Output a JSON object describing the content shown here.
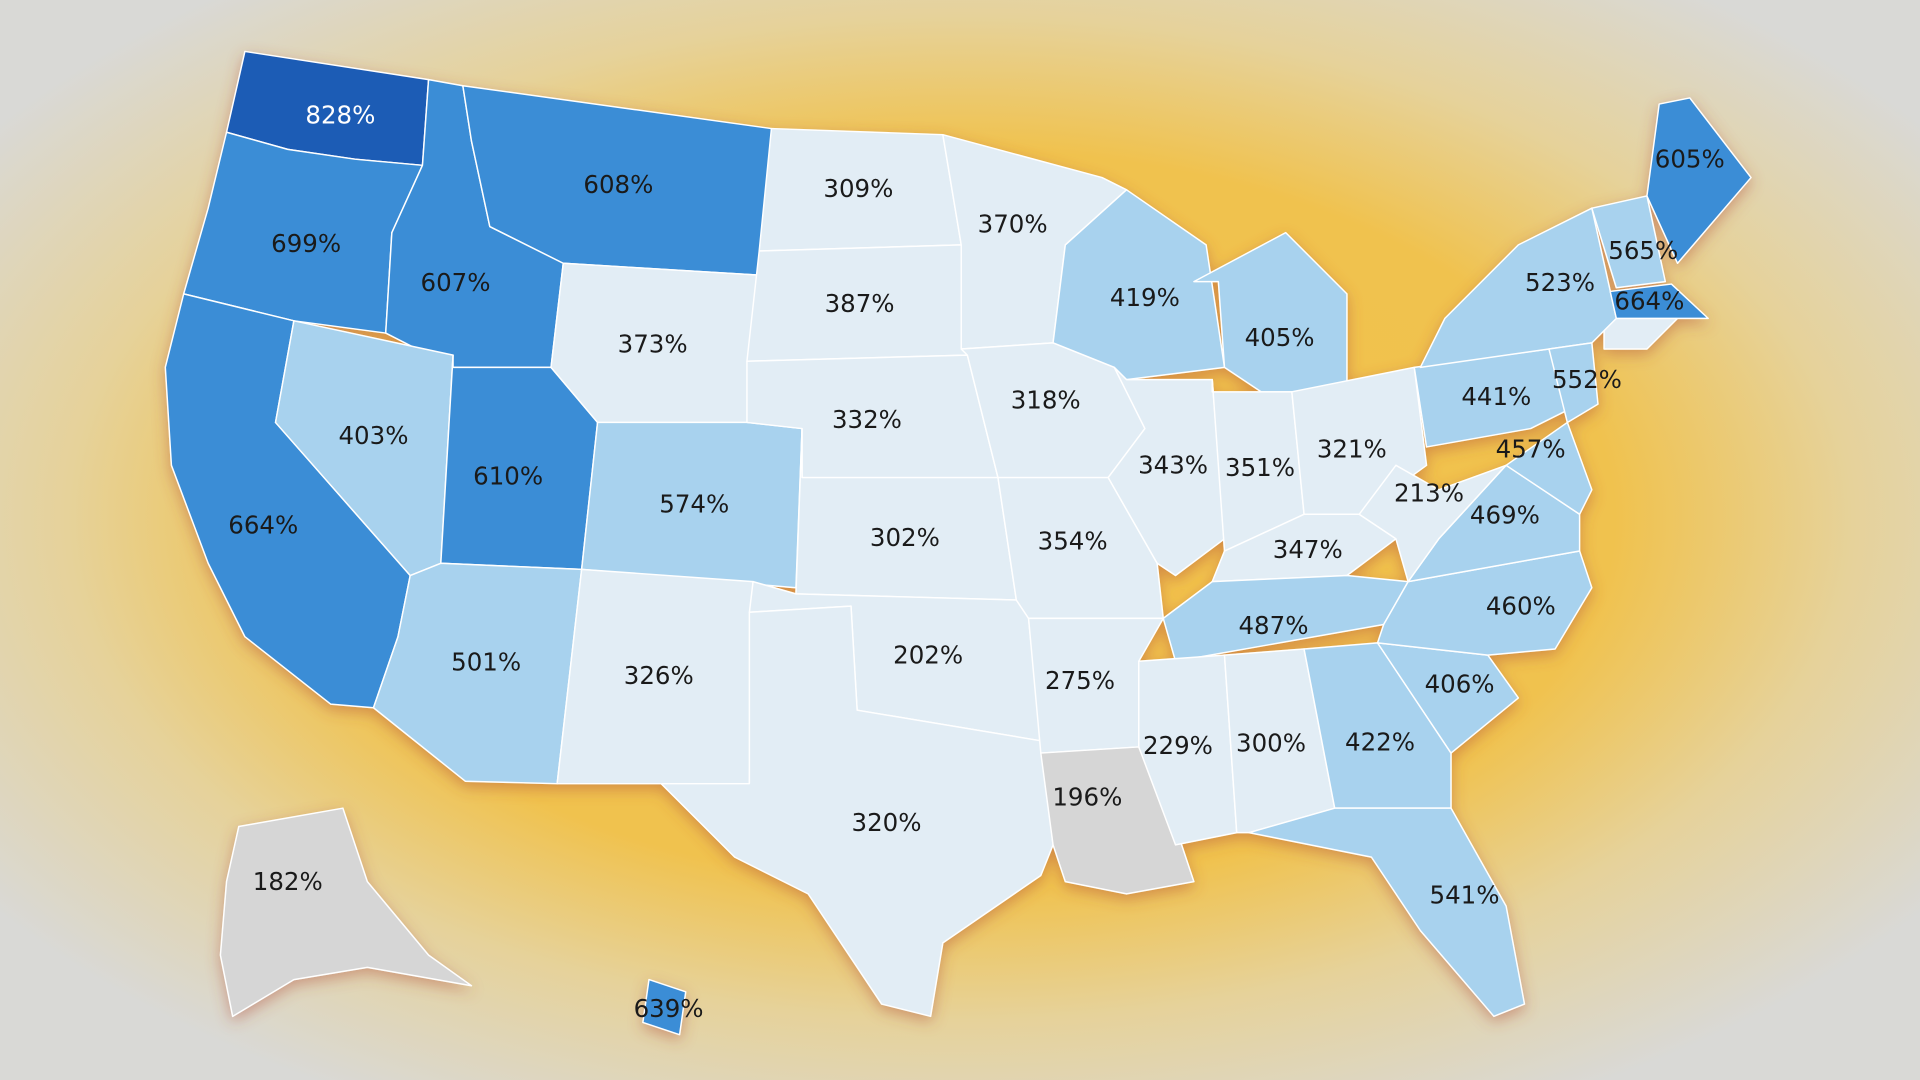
{
  "map": {
    "regions": [
      {
        "label": "828%",
        "color": "#1f5bb5"
      },
      {
        "label": "699%",
        "color": "#3b8dd6"
      },
      {
        "label": "664%",
        "color": "#3b8dd6"
      },
      {
        "label": "607%",
        "color": "#3b8dd6"
      },
      {
        "label": "608%",
        "color": "#3b8dd6"
      },
      {
        "label": "403%",
        "color": "#a8d2ee"
      },
      {
        "label": "610%",
        "color": "#3b8dd6"
      },
      {
        "label": "501%",
        "color": "#a8d2ee"
      },
      {
        "label": "373%",
        "color": "#e2edf5"
      },
      {
        "label": "574%",
        "color": "#a8d2ee"
      },
      {
        "label": "326%",
        "color": "#e2edf5"
      },
      {
        "label": "309%",
        "color": "#e2edf5"
      },
      {
        "label": "387%",
        "color": "#e2edf5"
      },
      {
        "label": "332%",
        "color": "#e2edf5"
      },
      {
        "label": "302%",
        "color": "#e2edf5"
      },
      {
        "label": "202%",
        "color": "#e2edf5"
      },
      {
        "label": "320%",
        "color": "#e2edf5"
      },
      {
        "label": "370%",
        "color": "#e2edf5"
      },
      {
        "label": "318%",
        "color": "#e2edf5"
      },
      {
        "label": "354%",
        "color": "#e2edf5"
      },
      {
        "label": "275%",
        "color": "#e2edf5"
      },
      {
        "label": "196%",
        "color": "#d6d6d6"
      },
      {
        "label": "419%",
        "color": "#a8d2ee"
      },
      {
        "label": "343%",
        "color": "#e2edf5"
      },
      {
        "label": "405%",
        "color": "#a8d2ee"
      },
      {
        "label": "351%",
        "color": "#e2edf5"
      },
      {
        "label": "321%",
        "color": "#e2edf5"
      },
      {
        "label": "347%",
        "color": "#e2edf5"
      },
      {
        "label": "487%",
        "color": "#a8d2ee"
      },
      {
        "label": "229%",
        "color": "#e2edf5"
      },
      {
        "label": "300%",
        "color": "#e2edf5"
      },
      {
        "label": "422%",
        "color": "#a8d2ee"
      },
      {
        "label": "541%",
        "color": "#a8d2ee"
      },
      {
        "label": "406%",
        "color": "#a8d2ee"
      },
      {
        "label": "460%",
        "color": "#a8d2ee"
      },
      {
        "label": "469%",
        "color": "#a8d2ee"
      },
      {
        "label": "213%",
        "color": "#e2edf5"
      },
      {
        "label": "441%",
        "color": "#a8d2ee"
      },
      {
        "label": "523%",
        "color": "#a8d2ee"
      },
      {
        "label": "552%",
        "color": "#a8d2ee"
      },
      {
        "label": "457%",
        "color": "#a8d2ee"
      },
      {
        "label": "565%",
        "color": "#a8d2ee"
      },
      {
        "label": "664%",
        "color": "#3b8dd6"
      },
      {
        "label": "605%",
        "color": "#3b8dd6"
      },
      {
        "label": "182%",
        "color": "#d6d6d6"
      },
      {
        "label": "639%",
        "color": "#3b8dd6"
      }
    ]
  }
}
